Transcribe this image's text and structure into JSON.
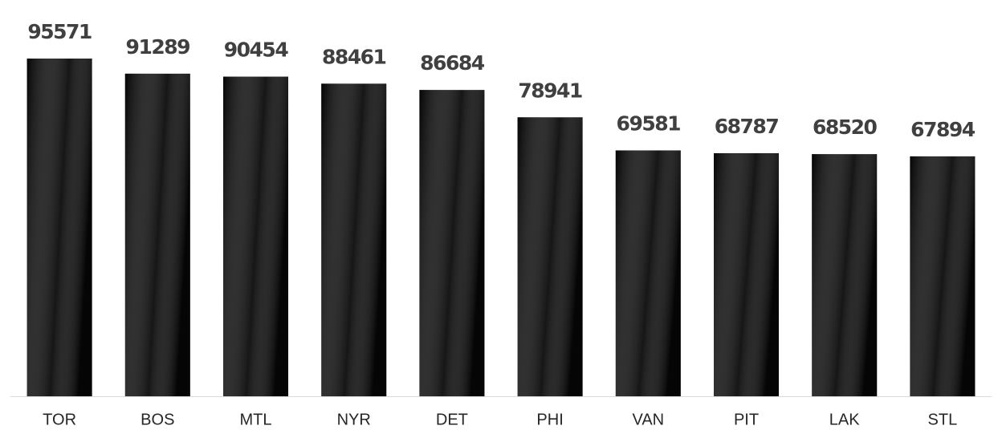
{
  "chart_data": {
    "type": "bar",
    "categories": [
      "TOR",
      "BOS",
      "MTL",
      "NYR",
      "DET",
      "PHI",
      "VAN",
      "PIT",
      "LAK",
      "STL"
    ],
    "values": [
      95571,
      91289,
      90454,
      88461,
      86684,
      78941,
      69581,
      68787,
      68520,
      67894
    ],
    "color": "#0a0a0a"
  }
}
